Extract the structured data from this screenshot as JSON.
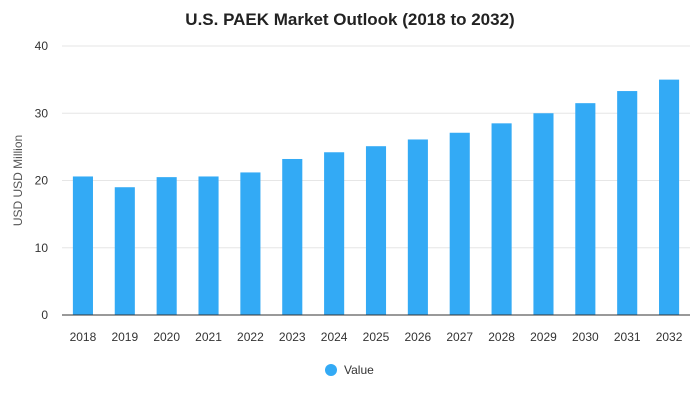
{
  "chart_data": {
    "type": "bar",
    "title": "U.S. PAEK Market Outlook (2018 to 2032)",
    "ylabel": "USD USD Million",
    "xlabel": "",
    "categories": [
      "2018",
      "2019",
      "2020",
      "2021",
      "2022",
      "2023",
      "2024",
      "2025",
      "2026",
      "2027",
      "2028",
      "2029",
      "2030",
      "2031",
      "2032"
    ],
    "series": [
      {
        "name": "Value",
        "color": "#33aaf5",
        "values": [
          20.6,
          19.0,
          20.5,
          20.6,
          21.2,
          23.2,
          24.2,
          25.1,
          26.1,
          27.1,
          28.5,
          30.0,
          31.5,
          33.3,
          35.0
        ]
      }
    ],
    "ylim": [
      0,
      40
    ],
    "yticks": [
      0,
      10,
      20,
      30,
      40
    ],
    "grid": true,
    "legend_position": "bottom-center"
  }
}
